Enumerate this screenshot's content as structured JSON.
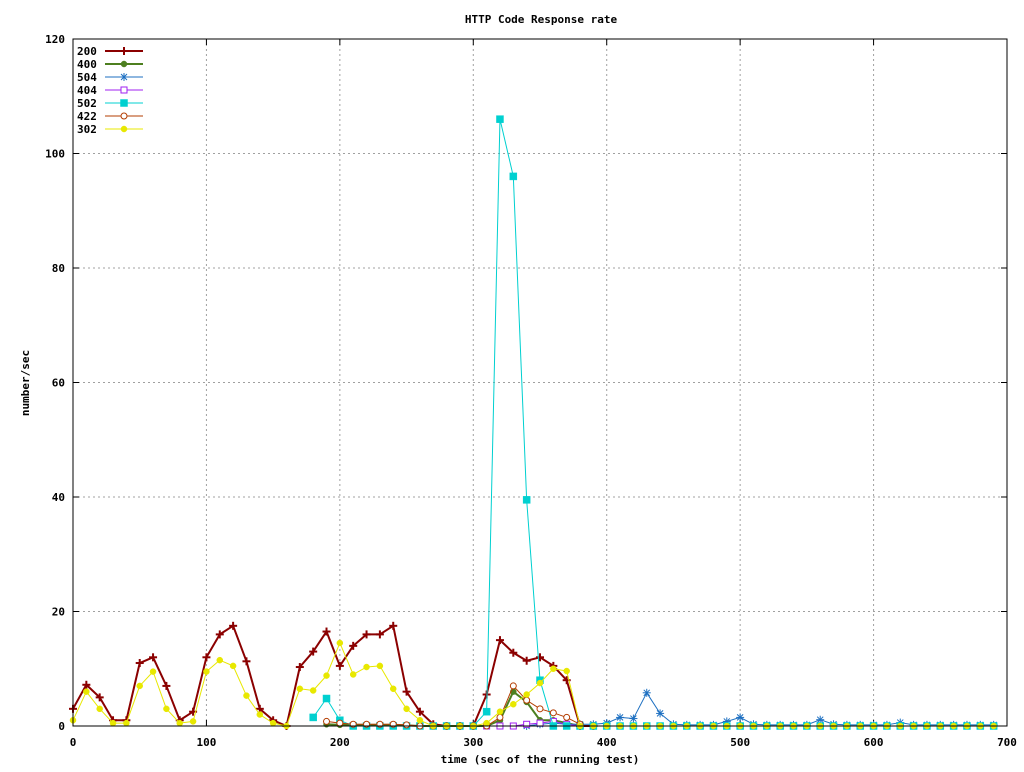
{
  "chart_data": {
    "type": "line",
    "title": "HTTP Code Response rate",
    "xlabel": "time (sec of the running test)",
    "ylabel": "number/sec",
    "xlim": [
      0,
      700
    ],
    "ylim": [
      0,
      120
    ],
    "xticks": [
      0,
      100,
      200,
      300,
      400,
      500,
      600,
      700
    ],
    "yticks": [
      0,
      20,
      40,
      60,
      80,
      100,
      120
    ],
    "grid": true,
    "legend_position": "top-left",
    "series": [
      {
        "name": "200",
        "color": "#8b0000",
        "marker": "plus",
        "line_width": 2,
        "points": [
          [
            0,
            3
          ],
          [
            10,
            7.2
          ],
          [
            20,
            5
          ],
          [
            30,
            1
          ],
          [
            40,
            1
          ],
          [
            50,
            11
          ],
          [
            60,
            12
          ],
          [
            70,
            7
          ],
          [
            80,
            1
          ],
          [
            90,
            2.5
          ],
          [
            100,
            12
          ],
          [
            110,
            16
          ],
          [
            120,
            17.5
          ],
          [
            130,
            11.3
          ],
          [
            140,
            3
          ],
          [
            150,
            1
          ],
          [
            160,
            0
          ],
          [
            170,
            10.3
          ],
          [
            180,
            13
          ],
          [
            190,
            16.5
          ],
          [
            200,
            10.5
          ],
          [
            210,
            14
          ],
          [
            220,
            16
          ],
          [
            230,
            16
          ],
          [
            240,
            17.5
          ],
          [
            250,
            6
          ],
          [
            260,
            2.5
          ],
          [
            270,
            0.3
          ],
          [
            280,
            0
          ],
          [
            290,
            0
          ],
          [
            300,
            0
          ],
          [
            310,
            5.5
          ],
          [
            320,
            15
          ],
          [
            330,
            12.8
          ],
          [
            340,
            11.4
          ],
          [
            350,
            12
          ],
          [
            360,
            10.5
          ],
          [
            370,
            8
          ],
          [
            380,
            0
          ],
          [
            390,
            0
          ]
        ]
      },
      {
        "name": "400",
        "color": "#4d7f1f",
        "marker": "filled-circle",
        "line_width": 2,
        "points": [
          [
            190,
            0.3
          ],
          [
            200,
            0.2
          ],
          [
            210,
            0.2
          ],
          [
            220,
            0.2
          ],
          [
            230,
            0.2
          ],
          [
            240,
            0.2
          ],
          [
            250,
            0.1
          ],
          [
            260,
            0
          ],
          [
            270,
            0
          ],
          [
            280,
            0
          ],
          [
            290,
            0
          ],
          [
            300,
            0
          ],
          [
            310,
            0
          ],
          [
            320,
            1
          ],
          [
            330,
            6
          ],
          [
            340,
            4.2
          ],
          [
            350,
            1
          ],
          [
            360,
            1
          ],
          [
            370,
            0.5
          ],
          [
            380,
            0
          ]
        ]
      },
      {
        "name": "504",
        "color": "#1c6fc1",
        "marker": "star",
        "line_width": 1,
        "points": [
          [
            340,
            0
          ],
          [
            350,
            0.3
          ],
          [
            360,
            0.5
          ],
          [
            370,
            0.3
          ],
          [
            380,
            0.3
          ],
          [
            390,
            0.3
          ],
          [
            400,
            0.5
          ],
          [
            410,
            1.5
          ],
          [
            420,
            1.3
          ],
          [
            430,
            5.8
          ],
          [
            440,
            2.2
          ],
          [
            450,
            0.3
          ],
          [
            460,
            0.2
          ],
          [
            470,
            0.2
          ],
          [
            480,
            0.2
          ],
          [
            490,
            0.8
          ],
          [
            500,
            1.5
          ],
          [
            510,
            0.3
          ],
          [
            520,
            0.2
          ],
          [
            530,
            0.2
          ],
          [
            540,
            0.2
          ],
          [
            550,
            0.2
          ],
          [
            560,
            1.1
          ],
          [
            570,
            0.3
          ],
          [
            580,
            0.2
          ],
          [
            590,
            0.2
          ],
          [
            600,
            0.2
          ],
          [
            610,
            0.2
          ],
          [
            620,
            0.6
          ],
          [
            630,
            0.2
          ],
          [
            640,
            0.2
          ],
          [
            650,
            0.2
          ],
          [
            660,
            0.2
          ],
          [
            670,
            0.2
          ],
          [
            680,
            0.2
          ],
          [
            690,
            0.2
          ]
        ]
      },
      {
        "name": "404",
        "color": "#a020f0",
        "marker": "open-square",
        "line_width": 1,
        "points": [
          [
            310,
            0
          ],
          [
            320,
            0
          ],
          [
            330,
            0
          ],
          [
            340,
            0.3
          ],
          [
            350,
            0.5
          ],
          [
            360,
            0.8
          ],
          [
            370,
            0.3
          ],
          [
            380,
            0
          ]
        ]
      },
      {
        "name": "502",
        "color": "#00d0d0",
        "marker": "filled-square",
        "line_width": 1,
        "points": [
          [
            180,
            1.5
          ],
          [
            190,
            4.8
          ],
          [
            200,
            1
          ],
          [
            210,
            0
          ],
          [
            220,
            0
          ],
          [
            230,
            0
          ],
          [
            240,
            0
          ],
          [
            250,
            0
          ],
          [
            260,
            0
          ],
          [
            270,
            0
          ],
          [
            280,
            0
          ],
          [
            290,
            0
          ],
          [
            300,
            0
          ],
          [
            310,
            2.5
          ],
          [
            320,
            106
          ],
          [
            330,
            96
          ],
          [
            340,
            39.5
          ],
          [
            350,
            8
          ],
          [
            360,
            0
          ],
          [
            370,
            0
          ],
          [
            380,
            0
          ],
          [
            390,
            0
          ],
          [
            400,
            0
          ],
          [
            410,
            0
          ],
          [
            420,
            0
          ],
          [
            430,
            0
          ],
          [
            440,
            0
          ],
          [
            450,
            0
          ],
          [
            460,
            0
          ],
          [
            470,
            0
          ],
          [
            480,
            0
          ],
          [
            490,
            0
          ],
          [
            500,
            0
          ],
          [
            510,
            0
          ],
          [
            520,
            0
          ],
          [
            530,
            0
          ],
          [
            540,
            0
          ],
          [
            550,
            0
          ],
          [
            560,
            0
          ],
          [
            570,
            0
          ],
          [
            580,
            0
          ],
          [
            590,
            0
          ],
          [
            600,
            0
          ],
          [
            610,
            0
          ],
          [
            620,
            0
          ],
          [
            630,
            0
          ],
          [
            640,
            0
          ],
          [
            650,
            0
          ],
          [
            660,
            0
          ],
          [
            670,
            0
          ],
          [
            680,
            0
          ],
          [
            690,
            0
          ]
        ]
      },
      {
        "name": "422",
        "color": "#b33c00",
        "marker": "open-circle",
        "line_width": 1,
        "points": [
          [
            190,
            0.8
          ],
          [
            200,
            0.5
          ],
          [
            210,
            0.3
          ],
          [
            220,
            0.3
          ],
          [
            230,
            0.3
          ],
          [
            240,
            0.3
          ],
          [
            250,
            0.2
          ],
          [
            260,
            0
          ],
          [
            270,
            0
          ],
          [
            280,
            0
          ],
          [
            290,
            0
          ],
          [
            300,
            0
          ],
          [
            310,
            0
          ],
          [
            320,
            1.5
          ],
          [
            330,
            7
          ],
          [
            340,
            4.5
          ],
          [
            350,
            3
          ],
          [
            360,
            2.3
          ],
          [
            370,
            1.5
          ],
          [
            380,
            0.3
          ]
        ]
      },
      {
        "name": "302",
        "color": "#e8e800",
        "marker": "filled-circle",
        "line_width": 1,
        "points": [
          [
            0,
            1
          ],
          [
            10,
            6
          ],
          [
            20,
            3
          ],
          [
            30,
            0.5
          ],
          [
            40,
            0.5
          ],
          [
            50,
            7
          ],
          [
            60,
            9.5
          ],
          [
            70,
            3
          ],
          [
            80,
            0.5
          ],
          [
            90,
            0.8
          ],
          [
            100,
            9.5
          ],
          [
            110,
            11.5
          ],
          [
            120,
            10.5
          ],
          [
            130,
            5.3
          ],
          [
            140,
            2
          ],
          [
            150,
            0.5
          ],
          [
            160,
            0
          ],
          [
            170,
            6.5
          ],
          [
            180,
            6.2
          ],
          [
            190,
            8.8
          ],
          [
            200,
            14.5
          ],
          [
            210,
            9
          ],
          [
            220,
            10.3
          ],
          [
            230,
            10.5
          ],
          [
            240,
            6.5
          ],
          [
            250,
            3
          ],
          [
            260,
            1
          ],
          [
            270,
            0
          ],
          [
            280,
            0
          ],
          [
            290,
            0
          ],
          [
            300,
            0
          ],
          [
            310,
            0.5
          ],
          [
            320,
            2.5
          ],
          [
            330,
            3.8
          ],
          [
            340,
            5.5
          ],
          [
            350,
            7.5
          ],
          [
            360,
            10
          ],
          [
            370,
            9.6
          ],
          [
            380,
            0
          ],
          [
            390,
            0
          ],
          [
            400,
            0
          ],
          [
            410,
            0
          ],
          [
            420,
            0
          ],
          [
            430,
            0
          ],
          [
            440,
            0
          ],
          [
            450,
            0
          ],
          [
            460,
            0
          ],
          [
            470,
            0
          ],
          [
            480,
            0
          ],
          [
            490,
            0
          ],
          [
            500,
            0
          ],
          [
            510,
            0
          ],
          [
            520,
            0
          ],
          [
            530,
            0
          ],
          [
            540,
            0
          ],
          [
            550,
            0
          ],
          [
            560,
            0
          ],
          [
            570,
            0
          ],
          [
            580,
            0
          ],
          [
            590,
            0
          ],
          [
            600,
            0
          ],
          [
            610,
            0
          ],
          [
            620,
            0
          ],
          [
            630,
            0
          ],
          [
            640,
            0
          ],
          [
            650,
            0
          ],
          [
            660,
            0
          ],
          [
            670,
            0
          ],
          [
            680,
            0
          ],
          [
            690,
            0
          ]
        ]
      }
    ]
  }
}
